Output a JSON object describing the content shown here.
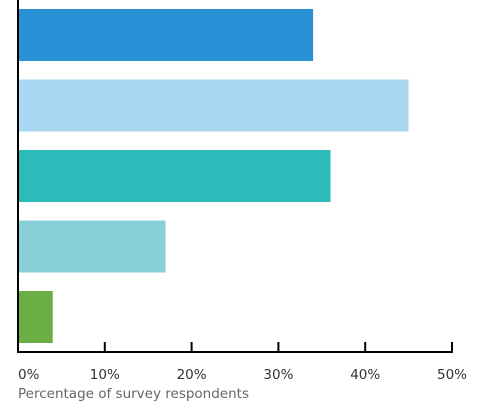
{
  "chart_data": {
    "type": "bar",
    "orientation": "horizontal",
    "xlabel": "Percentage of survey respondents",
    "xlim": [
      0,
      50
    ],
    "xticks": [
      0,
      10,
      20,
      30,
      40,
      50
    ],
    "xtick_labels": [
      "0%",
      "10%",
      "20%",
      "30%",
      "40%",
      "50%"
    ],
    "grid": false,
    "values": [
      34,
      45,
      36,
      17,
      4
    ],
    "colors": [
      "#2b91d6",
      "#a9d9f2",
      "#2bbbb8",
      "#88d1d8",
      "#6aae44"
    ]
  }
}
